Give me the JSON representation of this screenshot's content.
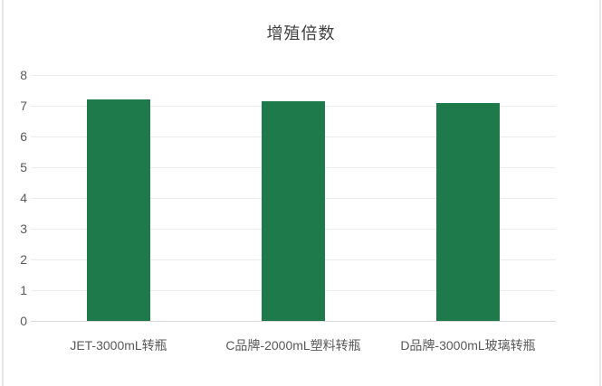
{
  "chart_data": {
    "type": "bar",
    "title": "增殖倍数",
    "categories": [
      "JET-3000mL转瓶",
      "C品牌-2000mL塑料转瓶",
      "D品牌-3000mL玻璃转瓶"
    ],
    "values": [
      7.2,
      7.15,
      7.1
    ],
    "xlabel": "",
    "ylabel": "",
    "ylim": [
      0,
      8
    ],
    "ytick_step": 1,
    "ytick_labels": [
      "0",
      "1",
      "2",
      "3",
      "4",
      "5",
      "6",
      "7",
      "8"
    ],
    "grid": true,
    "legend": "none",
    "colors": {
      "bar": "#1f7a4b",
      "gridline": "#ececec",
      "axis_line": "#d9d9d9",
      "tick_label": "#595959",
      "title": "#404040",
      "edge_line": "#e9e9e9",
      "background": "#ffffff"
    }
  }
}
